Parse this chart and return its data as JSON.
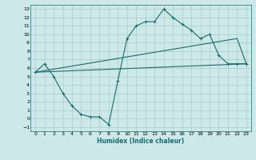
{
  "xlabel": "Humidex (Indice chaleur)",
  "background_color": "#cce8e8",
  "grid_color": "#aacccc",
  "line_color": "#1a6b6b",
  "xlim": [
    -0.5,
    23.5
  ],
  "ylim": [
    -1.5,
    13.5
  ],
  "xticks": [
    0,
    1,
    2,
    3,
    4,
    5,
    6,
    7,
    8,
    9,
    10,
    11,
    12,
    13,
    14,
    15,
    16,
    17,
    18,
    19,
    20,
    21,
    22,
    23
  ],
  "yticks": [
    -1,
    0,
    1,
    2,
    3,
    4,
    5,
    6,
    7,
    8,
    9,
    10,
    11,
    12,
    13
  ],
  "curve1_x": [
    0,
    1,
    2,
    3,
    4,
    5,
    6,
    7,
    8,
    9,
    10,
    11,
    12,
    13,
    14,
    15,
    16,
    17,
    18,
    19,
    20,
    21,
    22,
    23
  ],
  "curve1_y": [
    5.5,
    6.5,
    5.0,
    3.0,
    1.5,
    0.5,
    0.2,
    0.2,
    -0.7,
    4.5,
    9.5,
    11.0,
    11.5,
    11.5,
    13.0,
    12.0,
    11.2,
    10.5,
    9.5,
    10.0,
    7.5,
    6.5,
    6.5,
    6.5
  ],
  "curve2_x": [
    0,
    22,
    23
  ],
  "curve2_y": [
    5.5,
    9.5,
    6.5
  ],
  "curve3_x": [
    0,
    23
  ],
  "curve3_y": [
    5.5,
    6.5
  ],
  "figsize": [
    3.2,
    2.0
  ],
  "dpi": 100
}
